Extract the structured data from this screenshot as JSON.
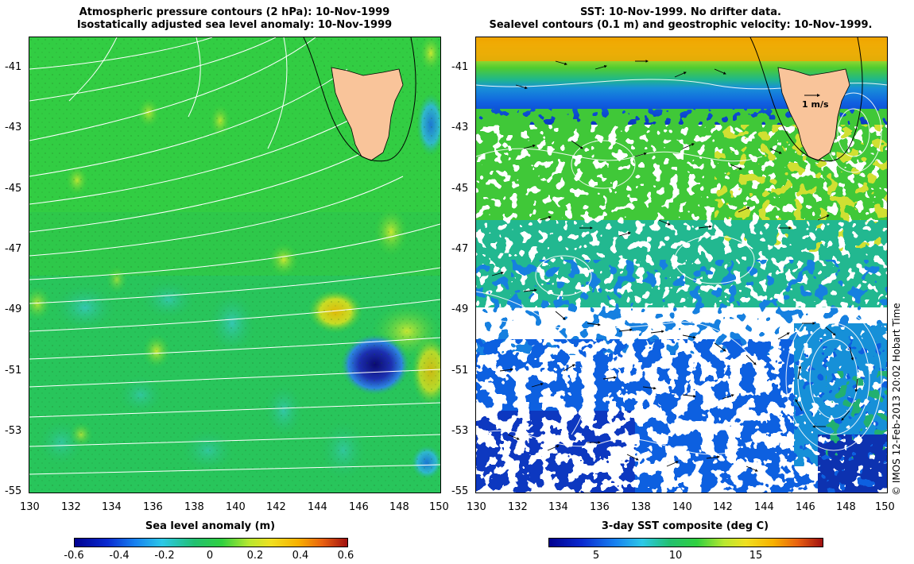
{
  "left_panel": {
    "title_line1": "Atmospheric pressure contours (2 hPa): 10-Nov-1999",
    "title_line2": "Isostatically adjusted sea level anomaly: 10-Nov-1999",
    "colorbar_label": "Sea level anomaly (m)",
    "colorbar_ticks": [
      "-0.6",
      "-0.4",
      "-0.2",
      "0",
      "0.2",
      "0.4",
      "0.6"
    ],
    "colorbar_range": [
      -0.6,
      0.6
    ]
  },
  "right_panel": {
    "title_line1": "SST: 10-Nov-1999. No drifter data.",
    "title_line2": "Sealevel contours (0.1 m) and geostrophic velocity: 10-Nov-1999.",
    "colorbar_label": "3-day SST composite (deg C)",
    "colorbar_ticks": [
      "5",
      "10",
      "15"
    ],
    "colorbar_tick_values": [
      5,
      10,
      15
    ],
    "colorbar_range": [
      2,
      20
    ],
    "velocity_scale_label": "1 m/s"
  },
  "axes": {
    "x_ticks": [
      "130",
      "132",
      "134",
      "136",
      "138",
      "140",
      "142",
      "144",
      "146",
      "148",
      "150"
    ],
    "y_ticks": [
      "-41",
      "-43",
      "-45",
      "-47",
      "-49",
      "-51",
      "-53",
      "-55"
    ],
    "lon_range": [
      130,
      150
    ],
    "lat_range": [
      -55,
      -40
    ]
  },
  "credit": "© IMOS 12-Feb-2013 20:02 Hobart Time",
  "colors": {
    "land": "#f9c49a",
    "slp_green": "#22cc44",
    "slp_neg_dark": "#0b0b78",
    "slp_pos": "#f0d000",
    "sst_yellow": "#f0e020",
    "sst_orange": "#f0a000",
    "sst_blue": "#1060e0",
    "contour_white": "#ffffff"
  }
}
